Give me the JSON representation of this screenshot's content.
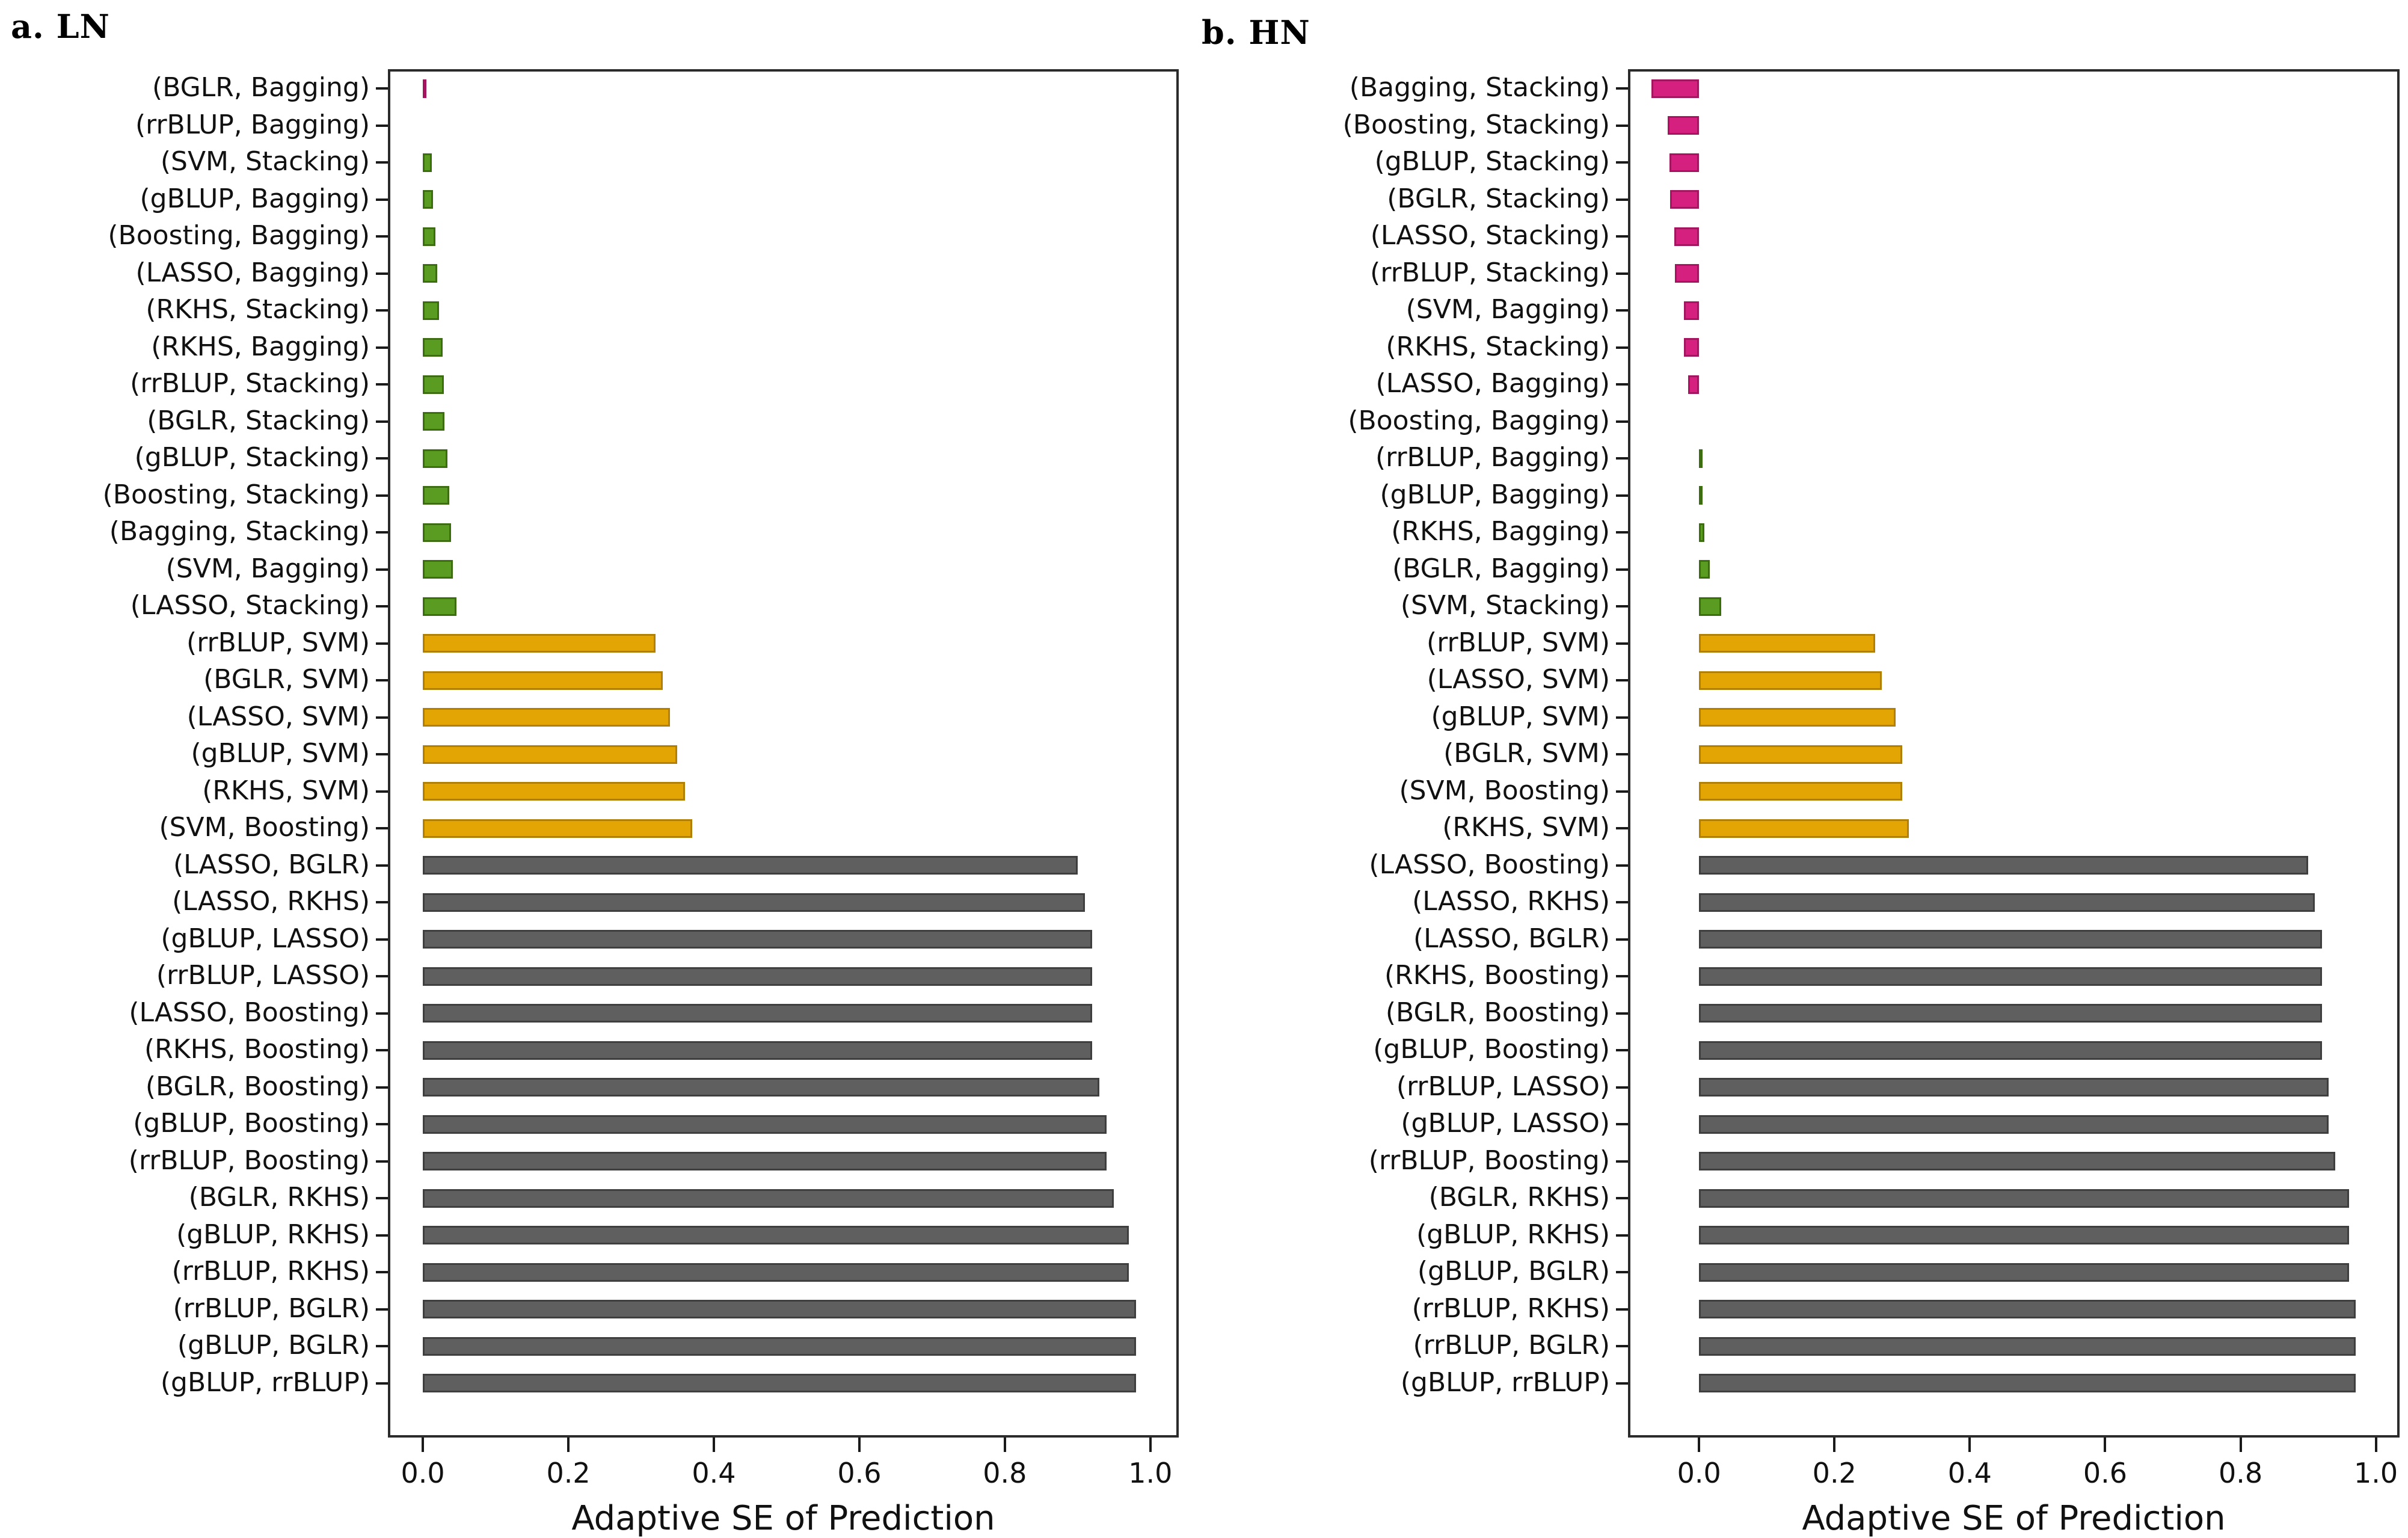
{
  "figure": {
    "panel_a_title": "a. LN",
    "panel_b_title": "b. HN",
    "x_axis_label": "Adaptive SE of Prediction"
  },
  "palette": {
    "pink": "#d6207f",
    "pink_border": "#a3155f",
    "green": "#5a9c21",
    "green_border": "#3c6e11",
    "yellow": "#e2a504",
    "yellow_border": "#b07f03",
    "gray": "#5f5f5f",
    "gray_border": "#3f3f3f",
    "frame": "#2b2b2b"
  },
  "chart_data": [
    {
      "id": "LN",
      "type": "bar",
      "orientation": "horizontal",
      "title": "a. LN",
      "xlabel": "Adaptive SE of Prediction",
      "xtick_labels": [
        "0.0",
        "0.2",
        "0.4",
        "0.6",
        "0.8",
        "1.0"
      ],
      "xticks": [
        0.0,
        0.2,
        0.4,
        0.6,
        0.8,
        1.0
      ],
      "xlim": [
        -0.048,
        1.039
      ],
      "grid": false,
      "legend": "none",
      "categories": [
        "(BGLR, Bagging)",
        "(rrBLUP, Bagging)",
        "(SVM, Stacking)",
        "(gBLUP, Bagging)",
        "(Boosting, Bagging)",
        "(LASSO, Bagging)",
        "(RKHS, Stacking)",
        "(RKHS, Bagging)",
        "(rrBLUP, Stacking)",
        "(BGLR, Stacking)",
        "(gBLUP, Stacking)",
        "(Boosting, Stacking)",
        "(Bagging, Stacking)",
        "(SVM, Bagging)",
        "(LASSO, Stacking)",
        "(rrBLUP, SVM)",
        "(BGLR, SVM)",
        "(LASSO, SVM)",
        "(gBLUP, SVM)",
        "(RKHS, SVM)",
        "(SVM, Boosting)",
        "(LASSO, BGLR)",
        "(LASSO, RKHS)",
        "(gBLUP, LASSO)",
        "(rrBLUP, LASSO)",
        "(LASSO, Boosting)",
        "(RKHS, Boosting)",
        "(BGLR, Boosting)",
        "(gBLUP, Boosting)",
        "(rrBLUP, Boosting)",
        "(BGLR, RKHS)",
        "(gBLUP, RKHS)",
        "(rrBLUP, RKHS)",
        "(rrBLUP, BGLR)",
        "(gBLUP, BGLR)",
        "(gBLUP, rrBLUP)"
      ],
      "values": [
        0.005,
        0.0,
        0.012,
        0.014,
        0.017,
        0.02,
        0.022,
        0.027,
        0.029,
        0.03,
        0.034,
        0.036,
        0.039,
        0.041,
        0.046,
        0.32,
        0.33,
        0.34,
        0.35,
        0.36,
        0.37,
        0.9,
        0.91,
        0.92,
        0.92,
        0.92,
        0.92,
        0.93,
        0.94,
        0.94,
        0.95,
        0.97,
        0.97,
        0.98,
        0.98,
        0.98
      ],
      "groups": [
        "pink",
        "green",
        "green",
        "green",
        "green",
        "green",
        "green",
        "green",
        "green",
        "green",
        "green",
        "green",
        "green",
        "green",
        "green",
        "yellow",
        "yellow",
        "yellow",
        "yellow",
        "yellow",
        "yellow",
        "gray",
        "gray",
        "gray",
        "gray",
        "gray",
        "gray",
        "gray",
        "gray",
        "gray",
        "gray",
        "gray",
        "gray",
        "gray",
        "gray",
        "gray"
      ]
    },
    {
      "id": "HN",
      "type": "bar",
      "orientation": "horizontal",
      "title": "b. HN",
      "xlabel": "Adaptive SE of Prediction",
      "xtick_labels": [
        "0.0",
        "0.2",
        "0.4",
        "0.6",
        "0.8",
        "1.0"
      ],
      "xticks": [
        0.0,
        0.2,
        0.4,
        0.6,
        0.8,
        1.0
      ],
      "xlim": [
        -0.105,
        1.035
      ],
      "grid": false,
      "legend": "none",
      "categories": [
        "(Bagging, Stacking)",
        "(Boosting, Stacking)",
        "(gBLUP, Stacking)",
        "(BGLR, Stacking)",
        "(LASSO, Stacking)",
        "(rrBLUP, Stacking)",
        "(SVM, Bagging)",
        "(RKHS, Stacking)",
        "(LASSO, Bagging)",
        "(Boosting, Bagging)",
        "(rrBLUP, Bagging)",
        "(gBLUP, Bagging)",
        "(RKHS, Bagging)",
        "(BGLR, Bagging)",
        "(SVM, Stacking)",
        "(rrBLUP, SVM)",
        "(LASSO, SVM)",
        "(gBLUP, SVM)",
        "(BGLR, SVM)",
        "(SVM, Boosting)",
        "(RKHS, SVM)",
        "(LASSO, Boosting)",
        "(LASSO, RKHS)",
        "(LASSO, BGLR)",
        "(RKHS, Boosting)",
        "(BGLR, Boosting)",
        "(gBLUP, Boosting)",
        "(rrBLUP, LASSO)",
        "(gBLUP, LASSO)",
        "(rrBLUP, Boosting)",
        "(BGLR, RKHS)",
        "(gBLUP, RKHS)",
        "(gBLUP, BGLR)",
        "(rrBLUP, RKHS)",
        "(rrBLUP, BGLR)",
        "(gBLUP, rrBLUP)"
      ],
      "values": [
        -0.07,
        -0.046,
        -0.044,
        -0.043,
        -0.037,
        -0.036,
        -0.022,
        -0.022,
        -0.016,
        0.0,
        0.004,
        0.004,
        0.008,
        0.016,
        0.033,
        0.26,
        0.27,
        0.29,
        0.3,
        0.3,
        0.31,
        0.9,
        0.91,
        0.92,
        0.92,
        0.92,
        0.92,
        0.93,
        0.93,
        0.94,
        0.96,
        0.96,
        0.96,
        0.97,
        0.97,
        0.97
      ],
      "groups": [
        "pink",
        "pink",
        "pink",
        "pink",
        "pink",
        "pink",
        "pink",
        "pink",
        "pink",
        "green",
        "green",
        "green",
        "green",
        "green",
        "green",
        "yellow",
        "yellow",
        "yellow",
        "yellow",
        "yellow",
        "yellow",
        "gray",
        "gray",
        "gray",
        "gray",
        "gray",
        "gray",
        "gray",
        "gray",
        "gray",
        "gray",
        "gray",
        "gray",
        "gray",
        "gray",
        "gray"
      ]
    }
  ]
}
